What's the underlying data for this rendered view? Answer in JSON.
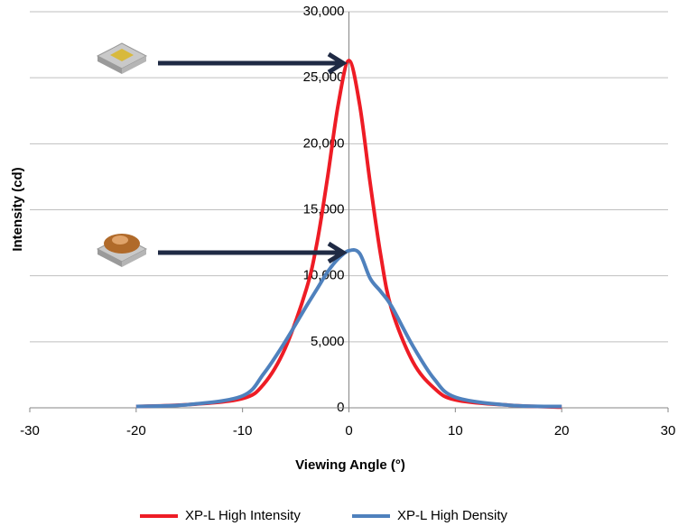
{
  "chart_data": {
    "type": "line",
    "x_label": "Viewing Angle (°)",
    "y_label": "Intensity (cd)",
    "x": [
      -20,
      -15,
      -10,
      -8,
      -6,
      -4,
      -3,
      -2,
      -1,
      0,
      1,
      2,
      3,
      4,
      6,
      8,
      10,
      15,
      20
    ],
    "series": [
      {
        "name": "XP-L High Intensity",
        "color": "#ee1c25",
        "values": [
          100,
          250,
          700,
          1800,
          4500,
          9000,
          12500,
          17500,
          23000,
          26300,
          23000,
          17000,
          11500,
          7500,
          3500,
          1500,
          600,
          200,
          50
        ]
      },
      {
        "name": "XP-L High Density",
        "color": "#4f81bd",
        "values": [
          100,
          250,
          900,
          2600,
          5000,
          7700,
          9000,
          10300,
          11300,
          11900,
          11700,
          9800,
          8800,
          7700,
          4700,
          2200,
          800,
          200,
          100
        ]
      }
    ],
    "xlim": [
      -30,
      30
    ],
    "xticks": [
      -30,
      -20,
      -10,
      0,
      10,
      20,
      30
    ],
    "ylim": [
      0,
      30000
    ],
    "yticks": [
      0,
      {
        "value": 5000,
        "label": "5,000"
      },
      {
        "value": 10000,
        "label": "10,000"
      },
      {
        "value": 15000,
        "label": "15,000"
      },
      {
        "value": 20000,
        "label": "20,000"
      },
      {
        "value": 25000,
        "label": "25,000"
      },
      {
        "value": 30000,
        "label": "30,000"
      }
    ],
    "grid": true,
    "legend": "bottom"
  }
}
